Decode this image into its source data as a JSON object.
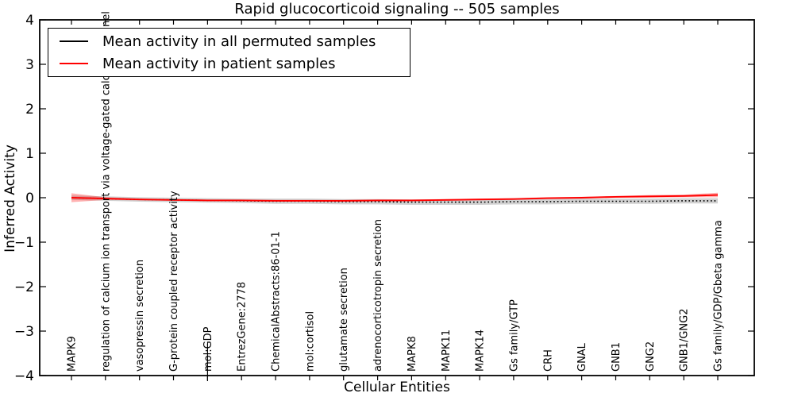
{
  "title": "Rapid glucocorticoid signaling -- 505 samples",
  "axes": {
    "ylabel": "Inferred Activity",
    "xlabel": "Cellular Entities",
    "ytick_labels": [
      "4",
      "3",
      "2",
      "1",
      "0",
      "−1",
      "−2",
      "−3",
      "−4"
    ],
    "ytick_values": [
      4,
      3,
      2,
      1,
      0,
      -1,
      -2,
      -3,
      -4
    ]
  },
  "legend": {
    "entries": [
      {
        "label": "Mean activity in all permuted samples",
        "color": "#000000"
      },
      {
        "label": "Mean activity in patient samples",
        "color": "#ff0000"
      }
    ]
  },
  "chart_data": {
    "type": "line",
    "title": "Rapid glucocorticoid signaling -- 505 samples",
    "xlabel": "Cellular Entities",
    "ylabel": "Inferred Activity",
    "ylim": [
      -4,
      4
    ],
    "grid": false,
    "legend_position": "upper left",
    "xtick_rotation": 90,
    "categories": [
      "MAPK9",
      "regulation of calcium ion transport via voltage-gated calcium channel",
      "vasopressin secretion",
      "G-protein coupled receptor activity",
      "mol:GDP",
      "EntrezGene:2778",
      "ChemicalAbstracts:86-01-1",
      "mol:cortisol",
      "glutamate secretion",
      "adrenocorticotropin secretion",
      "MAPK8",
      "MAPK11",
      "MAPK14",
      "Gs family/GTP",
      "CRH",
      "GNAL",
      "GNB1",
      "GNG2",
      "GNB1/GNG2",
      "Gs family/GDP/Gbeta gamma"
    ],
    "series": [
      {
        "name": "Mean activity in all permuted samples",
        "color": "#000000",
        "linestyle": "dotted",
        "band_color": "#999999",
        "band_opacity": 0.45,
        "values": [
          0.0,
          -0.02,
          -0.04,
          -0.05,
          -0.06,
          -0.07,
          -0.08,
          -0.08,
          -0.09,
          -0.09,
          -0.1,
          -0.1,
          -0.1,
          -0.09,
          -0.09,
          -0.08,
          -0.08,
          -0.08,
          -0.07,
          -0.07
        ],
        "band": [
          0.05,
          0.05,
          0.05,
          0.05,
          0.05,
          0.05,
          0.06,
          0.06,
          0.06,
          0.06,
          0.06,
          0.06,
          0.06,
          0.06,
          0.06,
          0.06,
          0.06,
          0.06,
          0.06,
          0.06
        ]
      },
      {
        "name": "Mean activity in patient samples",
        "color": "#ff0000",
        "linestyle": "solid",
        "band_color": "#ff0000",
        "band_opacity": 0.3,
        "values": [
          0.0,
          -0.02,
          -0.04,
          -0.05,
          -0.06,
          -0.06,
          -0.07,
          -0.07,
          -0.07,
          -0.06,
          -0.06,
          -0.05,
          -0.04,
          -0.03,
          -0.01,
          0.0,
          0.02,
          0.03,
          0.04,
          0.06
        ],
        "band": [
          0.1,
          0.03,
          0.02,
          0.02,
          0.02,
          0.02,
          0.02,
          0.02,
          0.02,
          0.02,
          0.02,
          0.02,
          0.02,
          0.02,
          0.02,
          0.02,
          0.02,
          0.03,
          0.03,
          0.05
        ]
      }
    ],
    "long_bottom_tick_at": "mol:GDP"
  }
}
